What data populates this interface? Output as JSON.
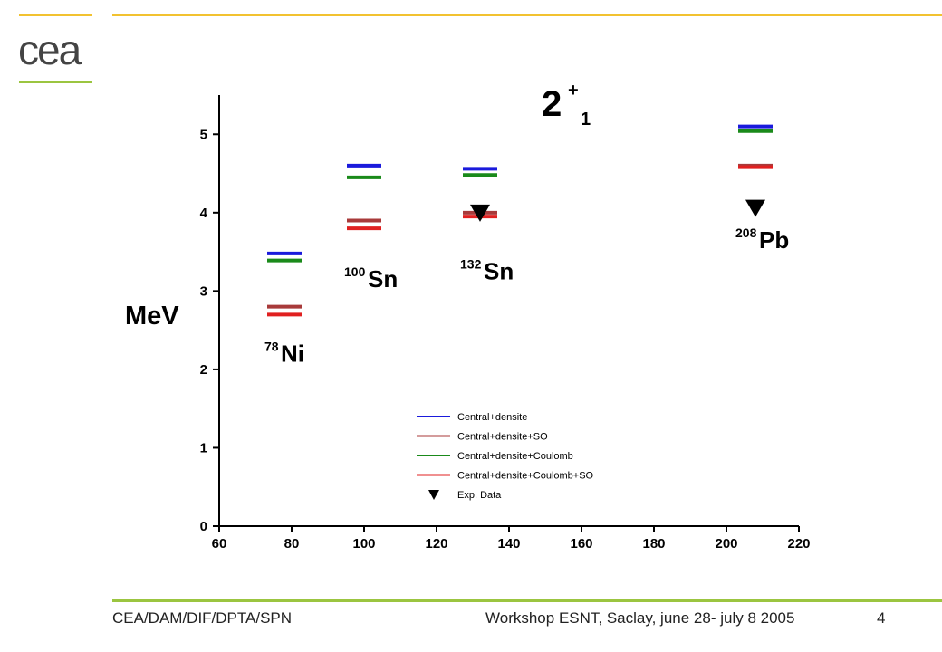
{
  "logo": {
    "text": "cea"
  },
  "footer": {
    "left": "CEA/DAM/DIF/DPTA/SPN",
    "center": "Workshop ESNT, Saclay,  june 28- july 8 2005",
    "page": "4"
  },
  "chart_data": {
    "type": "scatter",
    "title": "2+1",
    "title_main": "2",
    "title_sup": "+",
    "title_sub": "1",
    "ylabel": "MeV",
    "xlabel": "",
    "xlim": [
      60,
      220
    ],
    "ylim": [
      0,
      5.5
    ],
    "xticks": [
      60,
      80,
      100,
      120,
      140,
      160,
      180,
      200,
      220
    ],
    "yticks": [
      0,
      1,
      2,
      3,
      4,
      5
    ],
    "grid": false,
    "legend_position": "lower-right",
    "series": [
      {
        "name": "Central+densite",
        "color": "#1a1adc",
        "marker": "hline",
        "points": [
          {
            "x": 78,
            "y": 3.48
          },
          {
            "x": 100,
            "y": 4.6
          },
          {
            "x": 132,
            "y": 4.56
          },
          {
            "x": 208,
            "y": 5.1
          }
        ]
      },
      {
        "name": "Central+densite+SO",
        "color": "#a83a3a",
        "marker": "hline",
        "points": [
          {
            "x": 78,
            "y": 2.8
          },
          {
            "x": 100,
            "y": 3.9
          },
          {
            "x": 132,
            "y": 4.0
          },
          {
            "x": 208,
            "y": 4.6
          }
        ]
      },
      {
        "name": "Central+densite+Coulomb",
        "color": "#1a8a1a",
        "marker": "hline",
        "points": [
          {
            "x": 78,
            "y": 3.39
          },
          {
            "x": 100,
            "y": 4.45
          },
          {
            "x": 132,
            "y": 4.48
          },
          {
            "x": 208,
            "y": 5.04
          }
        ]
      },
      {
        "name": "Central+densite+Coulomb+SO",
        "color": "#e02020",
        "marker": "hline",
        "points": [
          {
            "x": 78,
            "y": 2.7
          },
          {
            "x": 100,
            "y": 3.8
          },
          {
            "x": 132,
            "y": 3.95
          },
          {
            "x": 208,
            "y": 4.58
          }
        ]
      },
      {
        "name": "Exp. Data",
        "color": "#000000",
        "marker": "triangle-down",
        "points": [
          {
            "x": 132,
            "y": 4.0
          },
          {
            "x": 208,
            "y": 4.06
          }
        ]
      }
    ],
    "annotations": [
      {
        "mass": "78",
        "element": "Ni",
        "x": 78,
        "y": 2.1
      },
      {
        "mass": "100",
        "element": "Sn",
        "x": 100,
        "y": 3.05
      },
      {
        "mass": "132",
        "element": "Sn",
        "x": 132,
        "y": 3.15
      },
      {
        "mass": "208",
        "element": "Pb",
        "x": 208,
        "y": 3.55
      }
    ]
  }
}
